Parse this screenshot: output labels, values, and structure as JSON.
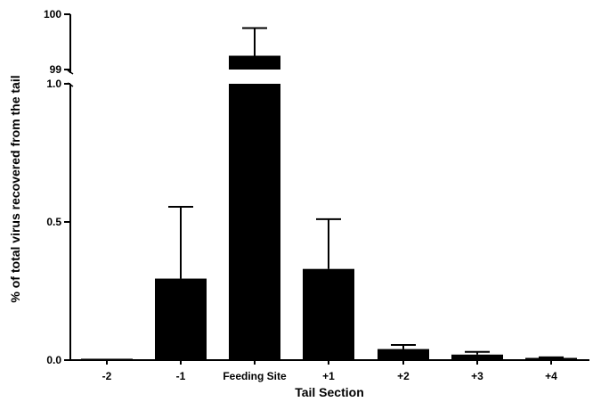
{
  "chart_data": {
    "type": "bar",
    "xlabel": "Tail Section",
    "ylabel": "% of total virus recovered from the tail",
    "broken_y_axis": true,
    "lower_segment": {
      "ylim": [
        0.0,
        1.0
      ],
      "ticks": [
        "0.0",
        "0.5",
        "1.0"
      ]
    },
    "upper_segment": {
      "ylim": [
        98.8,
        100
      ],
      "ticks": [
        "99",
        "100"
      ]
    },
    "categories": [
      "-2",
      "-1",
      "Feeding Site",
      "+1",
      "+2",
      "+3",
      "+4"
    ],
    "values": [
      0.005,
      0.295,
      99.25,
      0.33,
      0.04,
      0.02,
      0.008
    ],
    "error_upper": [
      0.005,
      0.555,
      99.75,
      0.51,
      0.055,
      0.03,
      0.01
    ],
    "bar_color": "#000000",
    "error_bars": "upper only"
  }
}
